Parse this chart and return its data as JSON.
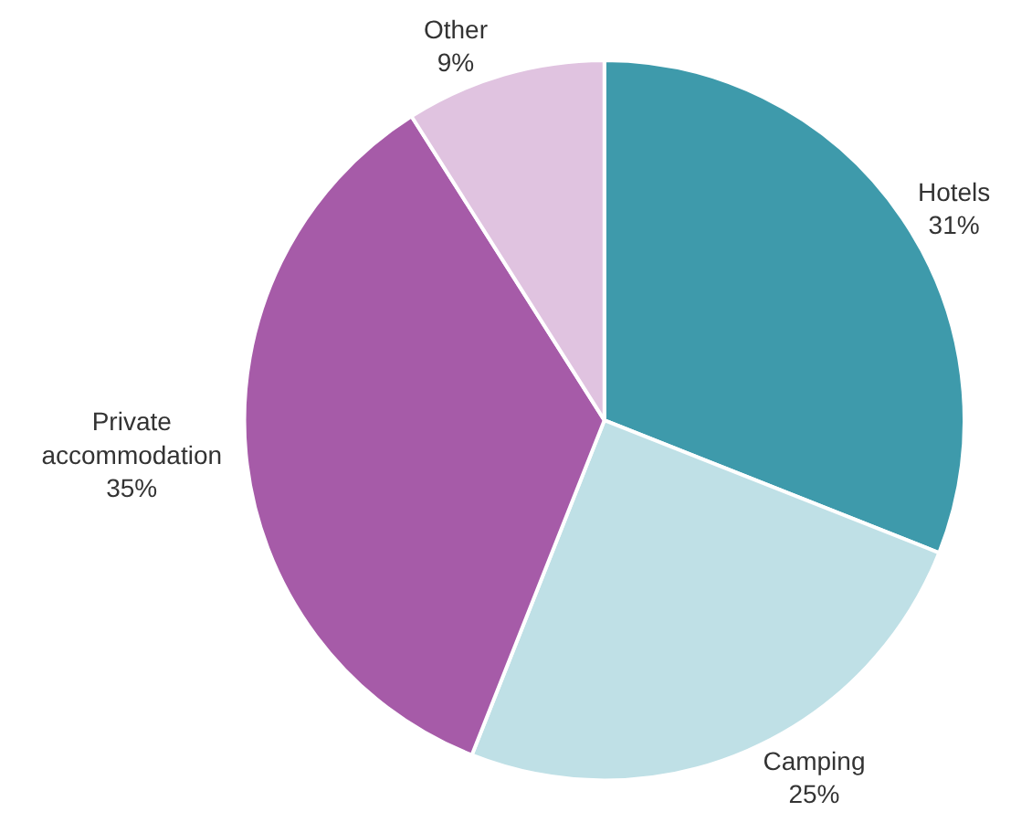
{
  "chart_data": {
    "type": "pie",
    "categories": [
      "Hotels",
      "Camping",
      "Private accommodation",
      "Other"
    ],
    "values": [
      31,
      25,
      35,
      9
    ],
    "value_labels": [
      "31%",
      "25%",
      "35%",
      "9%"
    ],
    "colors": [
      "#3e9aab",
      "#bfe0e6",
      "#a65ba8",
      "#e0c3e0"
    ],
    "legend": false
  }
}
